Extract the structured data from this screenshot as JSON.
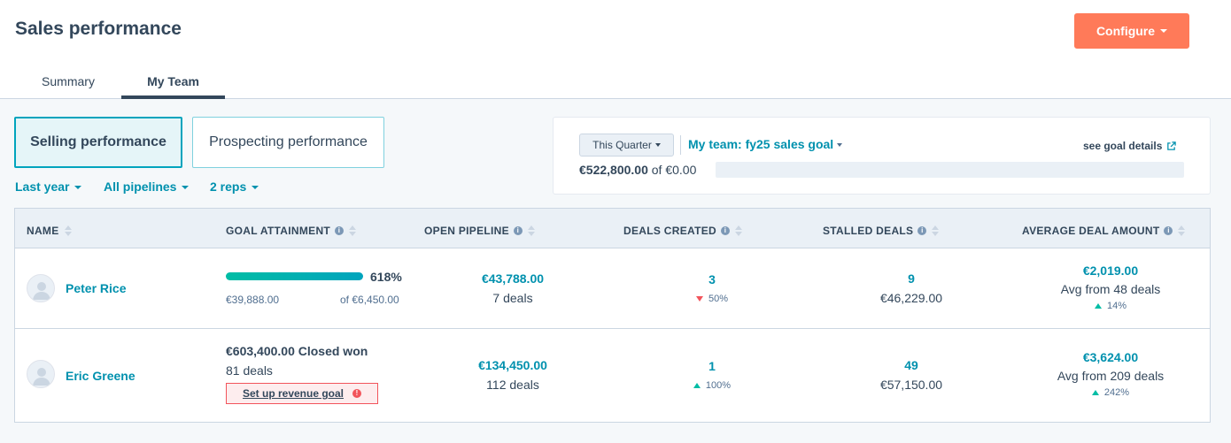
{
  "page": {
    "title": "Sales performance"
  },
  "header": {
    "configure_label": "Configure"
  },
  "tabs": [
    {
      "label": "Summary",
      "active": false
    },
    {
      "label": "My Team",
      "active": true
    }
  ],
  "view_toggle": {
    "selling": "Selling performance",
    "prospecting": "Prospecting performance"
  },
  "filters": {
    "date": "Last year",
    "pipelines": "All pipelines",
    "reps": "2 reps"
  },
  "goal": {
    "period": "This Quarter",
    "name": "My team: fy25 sales goal",
    "details_link": "see goal details",
    "amount": "€522,800.00",
    "of_text": "of €0.00",
    "progress_fraction": 0
  },
  "table": {
    "headers": [
      "NAME",
      "GOAL ATTAINMENT",
      "OPEN PIPELINE",
      "DEALS CREATED",
      "STALLED DEALS",
      "AVERAGE DEAL AMOUNT"
    ],
    "rows": [
      {
        "name": "Peter Rice",
        "goal_percent": "618%",
        "goal_progress_fraction": 1,
        "goal_achieved": "€39,888.00",
        "goal_target": "of €6,450.00",
        "open_pipeline": "€43,788.00",
        "open_deals": "7 deals",
        "deals_created": "3",
        "deals_trend": "50%",
        "deals_trend_dir": "down",
        "stalled_count": "9",
        "stalled_amount": "€46,229.00",
        "avg_amount": "€2,019.00",
        "avg_from": "Avg from 48 deals",
        "avg_trend": "14%",
        "avg_trend_dir": "up"
      },
      {
        "name": "Eric Greene",
        "closed_won": "€603,400.00 Closed won",
        "closed_deals": "81 deals",
        "setup_goal": "Set up revenue goal",
        "open_pipeline": "€134,450.00",
        "open_deals": "112 deals",
        "deals_created": "1",
        "deals_trend": "100%",
        "deals_trend_dir": "up",
        "stalled_count": "49",
        "stalled_amount": "€57,150.00",
        "avg_amount": "€3,624.00",
        "avg_from": "Avg from 209 deals",
        "avg_trend": "242%",
        "avg_trend_dir": "up"
      }
    ]
  },
  "colors": {
    "accent_teal": "#0091ae",
    "configure_orange": "#ff7a59",
    "up_green": "#00bda5",
    "down_red": "#f2545b",
    "text_dark": "#33475b"
  },
  "icons": {
    "sort": "sort-icon",
    "info": "info-icon",
    "external": "external-link-icon",
    "avatar": "avatar-placeholder-icon",
    "warning": "warning-icon"
  }
}
